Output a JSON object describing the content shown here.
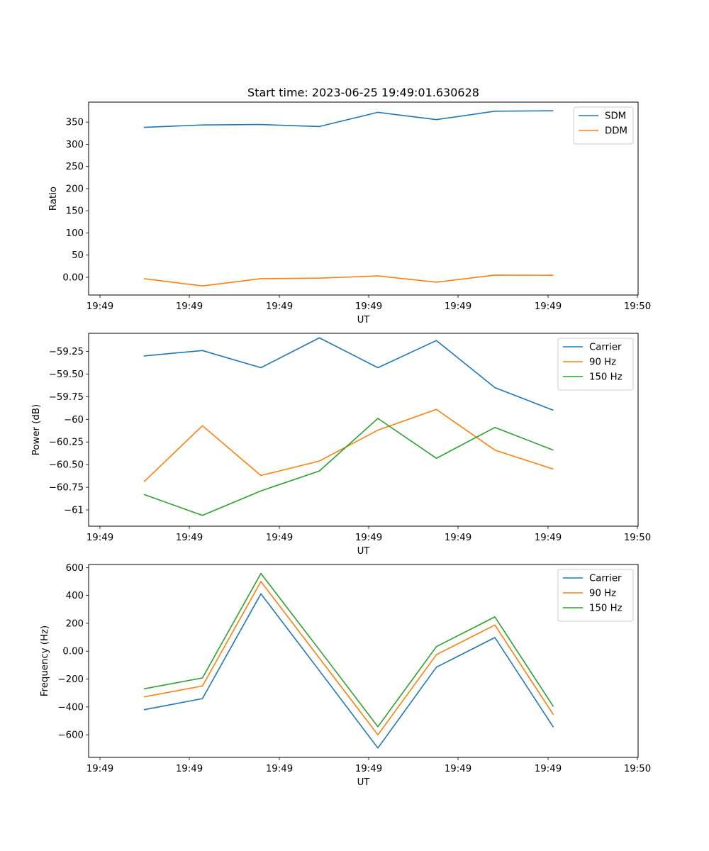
{
  "figure": {
    "title": "Start time: 2023-06-25 19:49:01.630628"
  },
  "chart_data": [
    {
      "type": "line",
      "title": "Start time: 2023-06-25 19:49:01.630628",
      "xlabel": "UT",
      "ylabel": "Ratio",
      "x_tick_labels": [
        "19:49",
        "19:49",
        "19:49",
        "19:49",
        "19:49",
        "19:49",
        "19:50"
      ],
      "x": [
        1,
        2,
        3,
        4,
        5,
        6,
        7,
        8
      ],
      "xlim": [
        0.8,
        9.2
      ],
      "ylim": [
        -40,
        395
      ],
      "y_ticks": [
        0,
        50,
        100,
        150,
        200,
        250,
        300,
        350
      ],
      "legend_position": "upper right",
      "grid": false,
      "series": [
        {
          "name": "SDM",
          "color": "#1f77b4",
          "values": [
            338,
            343.5,
            344.5,
            340,
            372,
            355.5,
            374.5,
            375.5
          ]
        },
        {
          "name": "DDM",
          "color": "#ff7f0e",
          "values": [
            -3,
            -19.5,
            -3,
            -2,
            3,
            -11,
            5,
            4.5
          ]
        }
      ]
    },
    {
      "type": "line",
      "title": "",
      "xlabel": "UT",
      "ylabel": "Power (dB)",
      "x_tick_labels": [
        "19:49",
        "19:49",
        "19:49",
        "19:49",
        "19:49",
        "19:49",
        "19:50"
      ],
      "x": [
        1,
        2,
        3,
        4,
        5,
        6,
        7,
        8
      ],
      "xlim": [
        0.8,
        9.2
      ],
      "ylim": [
        -61.18,
        -59.05
      ],
      "y_ticks": [
        -61.0,
        -60.75,
        -60.5,
        -60.25,
        -60.0,
        -59.75,
        -59.5,
        -59.25
      ],
      "legend_position": "upper right",
      "grid": false,
      "series": [
        {
          "name": "Carrier",
          "color": "#1f77b4",
          "values": [
            -59.3,
            -59.24,
            -59.43,
            -59.1,
            -59.43,
            -59.13,
            -59.65,
            -59.9
          ]
        },
        {
          "name": "90 Hz",
          "color": "#ff7f0e",
          "values": [
            -60.69,
            -60.07,
            -60.62,
            -60.46,
            -60.12,
            -59.89,
            -60.34,
            -60.55
          ]
        },
        {
          "name": "150 Hz",
          "color": "#2ca02c",
          "values": [
            -60.83,
            -61.06,
            -60.79,
            -60.57,
            -59.99,
            -60.43,
            -60.09,
            -60.34
          ]
        }
      ]
    },
    {
      "type": "line",
      "title": "",
      "xlabel": "UT",
      "ylabel": "Frequency (Hz)",
      "x_tick_labels": [
        "19:49",
        "19:49",
        "19:49",
        "19:49",
        "19:49",
        "19:49",
        "19:50"
      ],
      "x": [
        1,
        2,
        3,
        4,
        5,
        6,
        7,
        8
      ],
      "xlim": [
        0.8,
        9.2
      ],
      "ylim": [
        -762,
        622
      ],
      "y_ticks": [
        -600,
        -400,
        -200,
        0,
        200,
        400,
        600
      ],
      "legend_position": "upper right",
      "grid": false,
      "series": [
        {
          "name": "Carrier",
          "color": "#1f77b4",
          "values": [
            -420,
            -340,
            412,
            -140,
            -695,
            -115,
            98,
            -545
          ]
        },
        {
          "name": "90 Hz",
          "color": "#ff7f0e",
          "values": [
            -328,
            -250,
            500,
            -50,
            -600,
            -25,
            188,
            -455
          ]
        },
        {
          "name": "150 Hz",
          "color": "#2ca02c",
          "values": [
            -270,
            -192,
            558,
            10,
            -542,
            33,
            246,
            -397
          ]
        }
      ]
    }
  ]
}
